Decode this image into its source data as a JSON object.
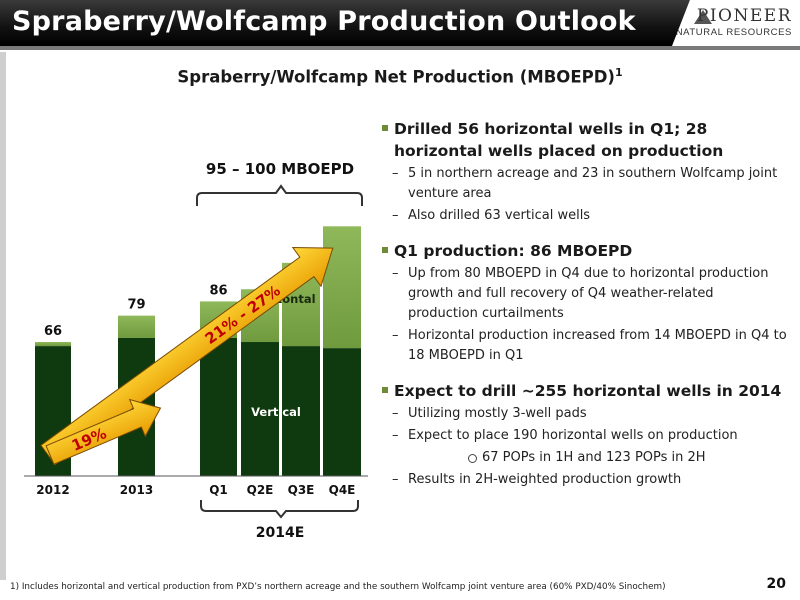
{
  "header": {
    "title": "Spraberry/Wolfcamp Production Outlook",
    "logo_name": "PIONEER",
    "logo_sub": "NATURAL RESOURCES"
  },
  "colors": {
    "vertical": "#0f3a0f",
    "horizontal": "#8db55a",
    "arrow": "#f0b000"
  },
  "chart_data": {
    "type": "bar",
    "title": "Spraberry/Wolfcamp Net Production (MBOEPD)",
    "title_footnote_marker": "1",
    "categories": [
      "2012",
      "2013",
      "Q1",
      "Q2E",
      "Q3E",
      "Q4E"
    ],
    "series": [
      {
        "name": "Vertical",
        "values": [
          64,
          68,
          68,
          66,
          64,
          63
        ]
      },
      {
        "name": "Horizontal",
        "values": [
          2,
          11,
          18,
          26,
          41,
          60
        ]
      }
    ],
    "data_labels": [
      "66",
      "79",
      "86",
      "",
      "",
      ""
    ],
    "range_label": "95 – 100 MBOEPD",
    "group_label": "2014E",
    "growth_labels": [
      "19%",
      "21% - 27%"
    ],
    "ylim": [
      0,
      130
    ]
  },
  "bullets": [
    {
      "text": "Drilled 56 horizontal wells in Q1; 28 horizontal wells placed on production",
      "subs": [
        {
          "text": "5 in northern acreage and 23 in southern Wolfcamp joint venture area"
        },
        {
          "text": "Also drilled 63 vertical wells"
        }
      ]
    },
    {
      "text": "Q1 production: 86 MBOEPD",
      "subs": [
        {
          "text": "Up from 80 MBOEPD in Q4 due to horizontal production growth and full recovery of Q4 weather-related production curtailments"
        },
        {
          "text": "Horizontal production increased from 14 MBOEPD in Q4 to 18 MBOEPD in Q1"
        }
      ]
    },
    {
      "text": "Expect to drill ~255 horizontal wells in 2014",
      "subs": [
        {
          "text": "Utilizing mostly 3-well pads"
        },
        {
          "text": "Expect to place 190 horizontal wells on production",
          "subsub": "67 POPs in 1H and 123 POPs in 2H"
        },
        {
          "text": "Results in 2H-weighted production growth"
        }
      ]
    }
  ],
  "footnote": "1) Includes horizontal and vertical production from PXD’s northern acreage and the southern Wolfcamp joint venture area (60% PXD/40% Sinochem)",
  "page_number": "20"
}
